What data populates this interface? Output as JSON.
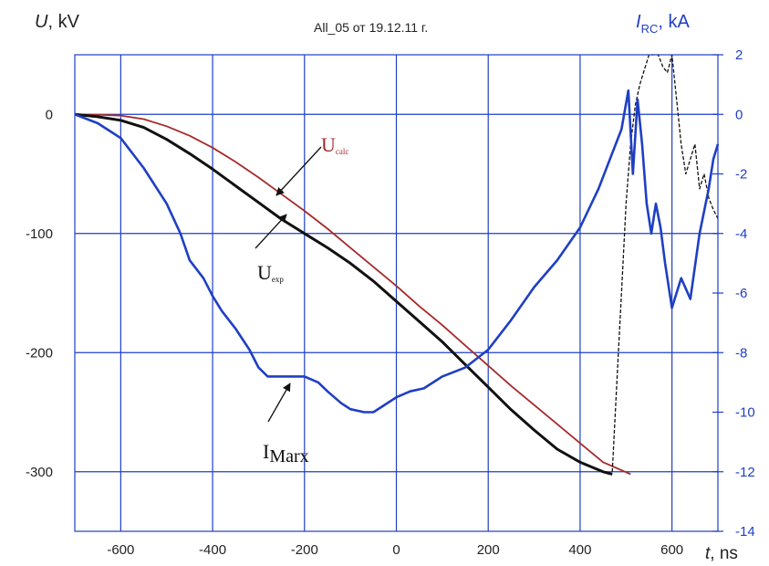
{
  "chart_data": {
    "type": "line",
    "title": "All_05 от 19.12.11 г.",
    "ylabel_left": {
      "symbol": "U",
      "unit": ", kV"
    },
    "ylabel_right": {
      "symbol": "I",
      "subscript": "RC",
      "unit": ", kA"
    },
    "xlabel": {
      "symbol": "t",
      "unit": ", ns"
    },
    "xlim": [
      -700,
      700
    ],
    "ylim_left": [
      -350,
      50
    ],
    "ylim_right": [
      -14,
      2
    ],
    "x_ticks": [
      "-600",
      "-400",
      "-200",
      "0",
      "200",
      "400",
      "600"
    ],
    "y_ticks_left": [
      "0",
      "-100",
      "-200",
      "-300"
    ],
    "y_ticks_right": [
      "2",
      "0",
      "-2",
      "-4",
      "-6",
      "-8",
      "-10",
      "-12",
      "-14"
    ],
    "grid": true,
    "colors": {
      "calc": "#a52a2a",
      "exp": "#111111",
      "mark": "#1f3fc4",
      "grid": "#1f3fc4"
    },
    "annotations": [
      {
        "text": "U",
        "sub": "calc",
        "color": "#a52a2a"
      },
      {
        "text": "U",
        "sub": "exp",
        "color": "#111111"
      },
      {
        "text": "I",
        "sub": "Marx",
        "color": "#111111"
      }
    ],
    "series": [
      {
        "axis": "left",
        "x": [
          -700,
          -640,
          -600,
          -550,
          -500,
          -450,
          -400,
          -350,
          -300,
          -250,
          -200,
          -150,
          -100,
          -50,
          0,
          50,
          100,
          150,
          200,
          250,
          300,
          350,
          400,
          450,
          510
        ],
        "y": [
          0,
          -0.5,
          -1,
          -4,
          -10,
          -18,
          -28,
          -40,
          -53,
          -67,
          -81,
          -96,
          -112,
          -128,
          -144,
          -161,
          -177,
          -194,
          -211,
          -228,
          -244,
          -260,
          -276,
          -292,
          -302
        ]
      },
      {
        "axis": "left",
        "x": [
          -700,
          -650,
          -600,
          -550,
          -500,
          -450,
          -400,
          -350,
          -300,
          -250,
          -200,
          -150,
          -100,
          -50,
          0,
          50,
          100,
          150,
          200,
          250,
          300,
          350,
          400,
          450,
          470
        ],
        "y": [
          0,
          -2,
          -5,
          -11,
          -21,
          -33,
          -46,
          -60,
          -74,
          -88,
          -100,
          -112,
          -125,
          -140,
          -157,
          -174,
          -191,
          -210,
          -229,
          -248,
          -265,
          -281,
          -292,
          -300,
          -302
        ]
      },
      {
        "axis": "right",
        "x": [
          470,
          480,
          490,
          500,
          510,
          520,
          530,
          540,
          550,
          560,
          570,
          580,
          590,
          600,
          610,
          620,
          630,
          640,
          650,
          660,
          670,
          680,
          690,
          700
        ],
        "y": [
          -12,
          -9,
          -6,
          -3,
          -1,
          0.3,
          1,
          1.5,
          2,
          2,
          2,
          1.6,
          1.4,
          2,
          0.5,
          -1,
          -2,
          -1.5,
          -1,
          -2.5,
          -2,
          -2.8,
          -3.2,
          -3.5
        ]
      },
      {
        "axis": "right",
        "x": [
          -700,
          -650,
          -600,
          -550,
          -500,
          -470,
          -450,
          -420,
          -400,
          -380,
          -350,
          -320,
          -300,
          -280,
          -250,
          -220,
          -200,
          -170,
          -150,
          -120,
          -100,
          -70,
          -50,
          -30,
          0,
          30,
          60,
          100,
          150,
          200,
          250,
          300,
          350,
          400,
          440,
          470,
          490,
          505,
          515,
          525,
          535,
          545,
          555,
          565,
          575,
          585,
          600,
          620,
          640,
          660,
          680,
          690,
          700
        ],
        "y": [
          0,
          -0.3,
          -0.8,
          -1.8,
          -3,
          -4,
          -4.9,
          -5.5,
          -6.1,
          -6.6,
          -7.2,
          -7.9,
          -8.5,
          -8.8,
          -8.8,
          -8.8,
          -8.8,
          -9.0,
          -9.3,
          -9.7,
          -9.9,
          -10.0,
          -10.0,
          -9.8,
          -9.5,
          -9.3,
          -9.2,
          -8.8,
          -8.5,
          -7.9,
          -6.9,
          -5.8,
          -4.9,
          -3.8,
          -2.5,
          -1.3,
          -0.5,
          0.8,
          -2,
          0.5,
          -1,
          -3,
          -4,
          -3,
          -3.8,
          -5,
          -6.5,
          -5.5,
          -6.2,
          -4,
          -2.5,
          -1.5,
          -1
        ]
      }
    ]
  }
}
